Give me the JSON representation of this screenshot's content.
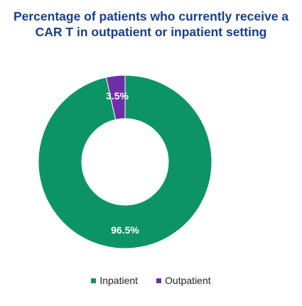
{
  "chart_data": {
    "type": "pie",
    "donut": true,
    "title_lines": [
      "Percentage of patients who currently receive a",
      "CAR T in outpatient or inpatient setting"
    ],
    "slices": [
      {
        "name": "Inpatient",
        "value": 96.5,
        "label": "96.5%",
        "color": "#0c9467"
      },
      {
        "name": "Outpatient",
        "value": 3.5,
        "label": "3.5%",
        "color": "#6f2fa6"
      }
    ],
    "legend_position": "bottom",
    "title_color": "#1a3d8f"
  }
}
